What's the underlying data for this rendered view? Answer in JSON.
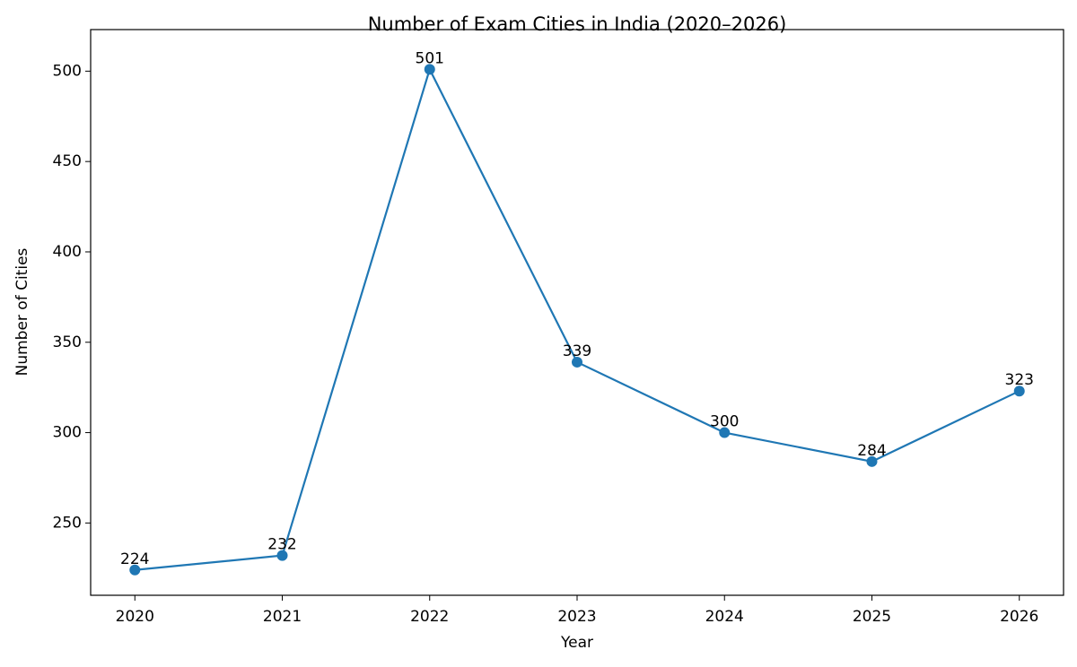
{
  "chart_data": {
    "type": "line",
    "title": "Number of Exam Cities in India (2020–2026)",
    "x_label": "Year",
    "y_label": "Number of Cities",
    "x": [
      2020,
      2021,
      2022,
      2023,
      2024,
      2025,
      2026
    ],
    "series": [
      {
        "name": "Number of Cities",
        "color": "#1f77b4",
        "values": [
          224,
          232,
          501,
          339,
          300,
          284,
          323
        ]
      }
    ],
    "xlim": [
      2019.7,
      2026.3
    ],
    "xticks": [
      2020,
      2021,
      2022,
      2023,
      2024,
      2025,
      2026
    ],
    "ylim": [
      210,
      523
    ],
    "yticks": [
      250,
      300,
      350,
      400,
      450,
      500
    ],
    "grid": false
  }
}
